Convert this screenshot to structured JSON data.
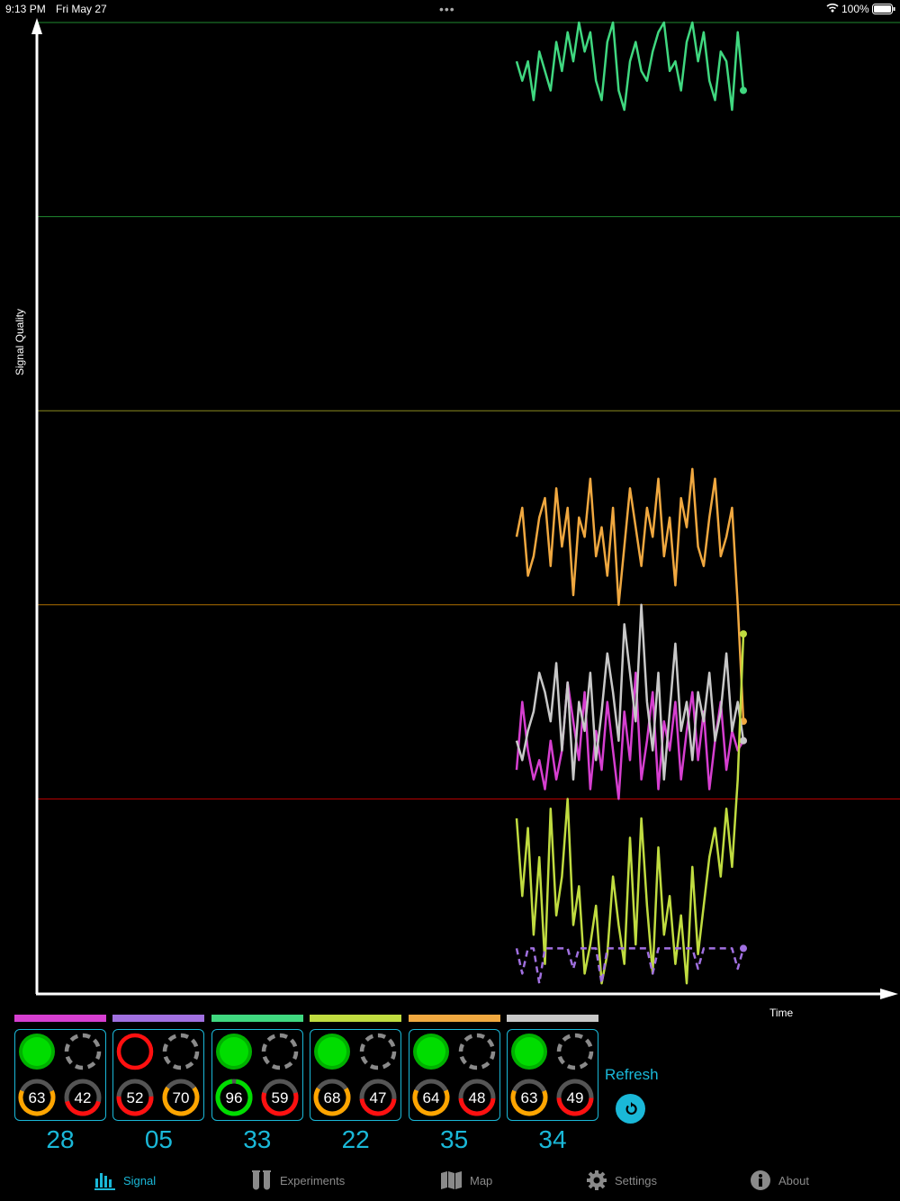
{
  "status_bar": {
    "time": "9:13 PM",
    "date": "Fri May 27",
    "dots": "•••",
    "battery": "100%"
  },
  "chart_data": {
    "type": "line",
    "ylabel": "Signal Quality",
    "xlabel": "Time",
    "ylim": [
      0,
      100
    ],
    "grid_lines": [
      {
        "y": 20,
        "color": "#c00000"
      },
      {
        "y": 40,
        "color": "#b07000"
      },
      {
        "y": 60,
        "color": "#8a8a20"
      },
      {
        "y": 80,
        "color": "#208a30"
      },
      {
        "y": 100,
        "color": "#208a30"
      }
    ],
    "series": [
      {
        "color": "#40d880",
        "dashed": false,
        "values": [
          96,
          94,
          96,
          92,
          97,
          95,
          93,
          98,
          95,
          99,
          96,
          100,
          97,
          99,
          94,
          92,
          98,
          100,
          93,
          91,
          96,
          98,
          95,
          94,
          97,
          99,
          100,
          95,
          96,
          93,
          98,
          100,
          96,
          99,
          94,
          92,
          97,
          96,
          91,
          99,
          93
        ]
      },
      {
        "color": "#f0a840",
        "dashed": false,
        "values": [
          47,
          50,
          43,
          45,
          49,
          51,
          44,
          52,
          46,
          50,
          41,
          49,
          47,
          53,
          45,
          48,
          43,
          50,
          40,
          46,
          52,
          48,
          44,
          50,
          47,
          53,
          45,
          49,
          42,
          51,
          48,
          54,
          46,
          44,
          49,
          53,
          45,
          47,
          50,
          40,
          28
        ]
      },
      {
        "color": "#d63fd0",
        "dashed": false,
        "values": [
          23,
          30,
          25,
          22,
          24,
          21,
          26,
          22,
          25,
          32,
          28,
          24,
          31,
          21,
          27,
          23,
          30,
          25,
          20,
          29,
          24,
          33,
          22,
          26,
          31,
          21,
          28,
          25,
          30,
          22,
          27,
          31,
          24,
          29,
          21,
          26,
          30,
          23,
          27,
          25,
          26
        ]
      },
      {
        "color": "#c8c8c8",
        "dashed": false,
        "values": [
          26,
          24,
          27,
          29,
          33,
          31,
          28,
          34,
          25,
          32,
          22,
          30,
          27,
          33,
          24,
          29,
          35,
          31,
          26,
          38,
          33,
          28,
          40,
          30,
          25,
          33,
          22,
          29,
          36,
          27,
          30,
          24,
          31,
          28,
          33,
          26,
          29,
          35,
          27,
          30,
          26
        ]
      },
      {
        "color": "#c0dc40",
        "dashed": false,
        "values": [
          18,
          10,
          17,
          6,
          14,
          3,
          19,
          8,
          12,
          20,
          7,
          11,
          2,
          5,
          9,
          1,
          4,
          12,
          7,
          3,
          16,
          5,
          18,
          9,
          2,
          15,
          6,
          10,
          3,
          8,
          1,
          13,
          4,
          9,
          14,
          17,
          12,
          19,
          13,
          22,
          37
        ]
      },
      {
        "color": "#a070e0",
        "dashed": true,
        "values": [
          4.6,
          2,
          4.6,
          4.6,
          1,
          4.6,
          4.6,
          4.6,
          4.6,
          4.6,
          2.5,
          4.6,
          4.6,
          4.6,
          4.6,
          1,
          4.6,
          4.6,
          4.6,
          4.6,
          4.6,
          4.6,
          4.6,
          4.6,
          2,
          4.6,
          4.6,
          4.6,
          4.6,
          4.6,
          4.6,
          4.6,
          2.5,
          4.6,
          4.6,
          4.6,
          4.6,
          4.6,
          4.6,
          2.5,
          4.6
        ]
      }
    ]
  },
  "sensors": [
    {
      "color": "#d63fd0",
      "status_color": "#00dd00",
      "status_filled": true,
      "gauge1": 63,
      "gauge2": 42,
      "id": "28"
    },
    {
      "color": "#a070e0",
      "status_color": "#ff1010",
      "status_filled": false,
      "gauge1": 52,
      "gauge2": 70,
      "id": "05"
    },
    {
      "color": "#40d880",
      "status_color": "#00dd00",
      "status_filled": true,
      "gauge1": 96,
      "gauge2": 59,
      "id": "33"
    },
    {
      "color": "#c0dc40",
      "status_color": "#00dd00",
      "status_filled": true,
      "gauge1": 68,
      "gauge2": 47,
      "id": "22"
    },
    {
      "color": "#f0a840",
      "status_color": "#00dd00",
      "status_filled": true,
      "gauge1": 64,
      "gauge2": 48,
      "id": "35"
    },
    {
      "color": "#c8c8c8",
      "status_color": "#00dd00",
      "status_filled": true,
      "gauge1": 63,
      "gauge2": 49,
      "id": "34"
    }
  ],
  "refresh": {
    "label": "Refresh"
  },
  "tabs": [
    {
      "label": "Signal",
      "icon": "bar-chart-icon",
      "active": true
    },
    {
      "label": "Experiments",
      "icon": "test-tubes-icon",
      "active": false
    },
    {
      "label": "Map",
      "icon": "map-icon",
      "active": false
    },
    {
      "label": "Settings",
      "icon": "gear-icon",
      "active": false
    },
    {
      "label": "About",
      "icon": "info-icon",
      "active": false
    }
  ],
  "accent": "#1ab8d8"
}
